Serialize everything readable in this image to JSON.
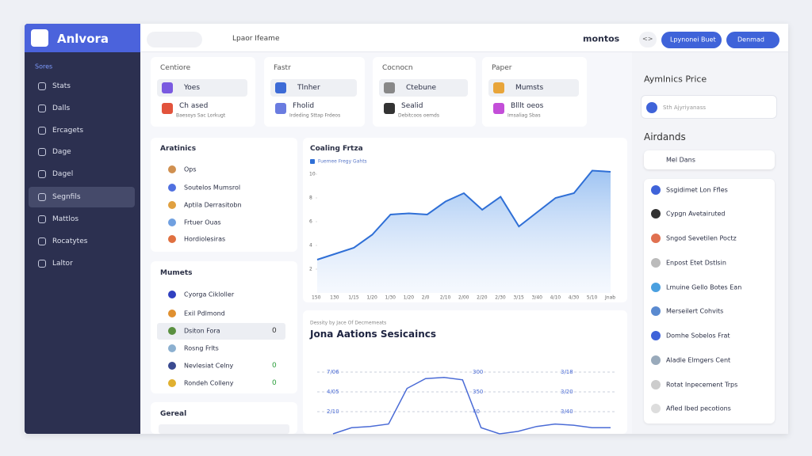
{
  "sidebar": {
    "brand": "Anlvora",
    "section": "Sores",
    "items": [
      "Stats",
      "Dalls",
      "Ercagets",
      "Dage",
      "Dagel",
      "Segnfils",
      "Mattlos",
      "Rocatytes",
      "Laltor"
    ],
    "active": 5
  },
  "topbar": {
    "search": "Lpaor Ifeame",
    "title": "montos",
    "toggle": "<>",
    "buttons": [
      "Lpynonei Buet",
      "Denmad"
    ]
  },
  "cards": [
    {
      "header": "Centiore",
      "row": "Yoes",
      "title": "Ch ased",
      "sub": "Baesoys Sac Lorkugt"
    },
    {
      "header": "Fastr",
      "row": "Tlnher",
      "title": "Fholid",
      "sub": "Irdeding Sttap Frdeos"
    },
    {
      "header": "Cocnocn",
      "row": "Ctebune",
      "title": "Sealid",
      "sub": "Debitcoos oemds"
    },
    {
      "header": "Paper",
      "row": "Mumsts",
      "title": "Blllt oeos",
      "sub": "Imsaliag Sbas"
    }
  ],
  "analytics": {
    "title": "Aratinics",
    "items": [
      "Ops",
      "Soutelos Mumsrol",
      "Aptila Derrasitobn",
      "Frtuer Ouas",
      "Hordiolesiras"
    ]
  },
  "moments": {
    "title": "Mumets",
    "items": [
      "Cyorga Cikloller",
      "Exil Pdlmond",
      "Dsiton Fora",
      "Rosng Frlts",
      "Nevlesiat Celny",
      "Rondeh Colleny"
    ],
    "counts": [
      null,
      null,
      "0",
      null,
      "0",
      "0"
    ]
  },
  "general": {
    "title": "Gereal"
  },
  "area_chart": {
    "title": "Coaling Frtza",
    "legend": "Fuemee Fregy Gahts",
    "categories": [
      "150",
      "130",
      "1/15",
      "1/20",
      "1/30",
      "1/20",
      "2/0",
      "2/10",
      "2/00",
      "2/20",
      "2/30",
      "3/15",
      "3/40",
      "4/10",
      "4/30",
      "5/10",
      "Jnab"
    ],
    "values": [
      2.8,
      3.3,
      3.8,
      4.9,
      6.6,
      6.7,
      6.6,
      7.7,
      8.4,
      7.0,
      8.1,
      5.6,
      6.8,
      8.0,
      8.4,
      10.3,
      10.2
    ],
    "ylim": [
      0,
      11
    ],
    "yticks": [
      2,
      4,
      6,
      8,
      10
    ],
    "color": "#2f6fd6"
  },
  "line_chart": {
    "subtitle": "Dessity by Jace Of Decmemeats",
    "title": "Jona Aations Sesicaincs",
    "values": [
      0,
      0.5,
      0.6,
      0.8,
      3.7,
      4.5,
      4.6,
      4.4,
      0.5,
      0,
      0.2,
      0.6,
      0.8,
      0.7,
      0.5,
      0.5
    ],
    "ylim": [
      0,
      6
    ],
    "color": "#4a6bd6",
    "left_labels": [
      "7/06",
      "4/05",
      "2/10"
    ],
    "mid_labels": [
      "300",
      "350",
      "40"
    ],
    "right_labels": [
      "3/18",
      "3/20",
      "3/40"
    ]
  },
  "right_panel": {
    "title": "Aymlnics Price",
    "search": "Sth Ajyriyanass",
    "subtitle": "Airdands",
    "dropdown": "Mel Dans",
    "items": [
      "Ssgidimet Lon Ffles",
      "Cypgn Avetairuted",
      "Sngod Sevetilen Poctz",
      "Enpost Etet Dstlsin",
      "Lmuine Gello Botes Ean",
      "Merseilert Cohvits",
      "Domhe Sobelos Frat",
      "Aladle Elmgers Cent",
      "Rotat Inpecement Trps",
      "Afled Ibed pecotions"
    ]
  }
}
